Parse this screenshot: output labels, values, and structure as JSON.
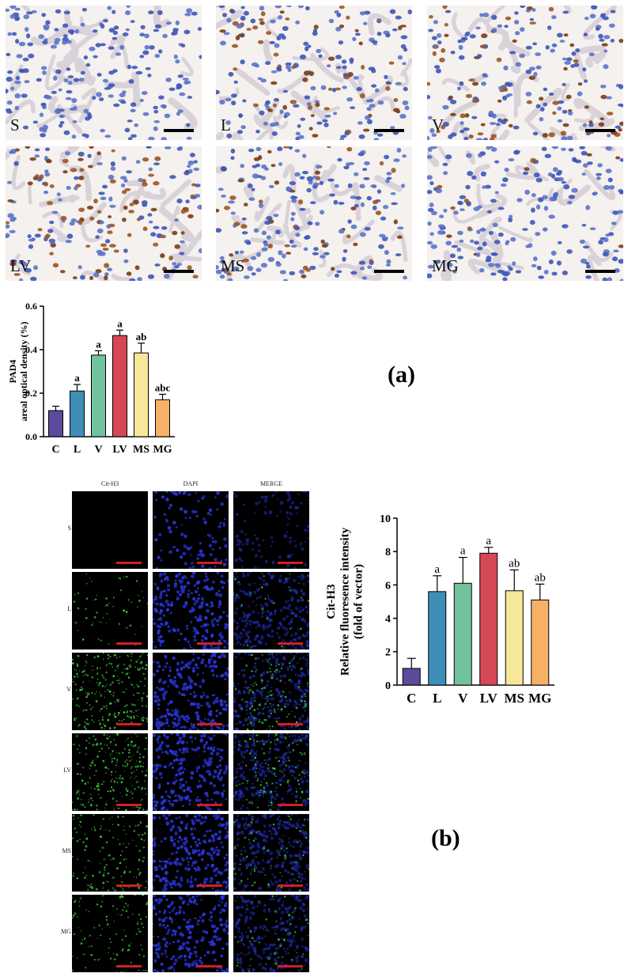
{
  "ihc_panels": [
    {
      "label": "S"
    },
    {
      "label": "L"
    },
    {
      "label": "V"
    },
    {
      "label": "LV"
    },
    {
      "label": "MS"
    },
    {
      "label": "MG"
    }
  ],
  "panel_a_tag": "(a)",
  "panel_b_tag": "(b)",
  "if_columns": [
    "Cit-H3",
    "DAPI",
    "MERGE"
  ],
  "if_rows": [
    "S",
    "L",
    "V",
    "LV",
    "MS",
    "MG"
  ],
  "colors": {
    "C": "#5b4b9a",
    "L": "#3e8eb8",
    "V": "#71c39e",
    "LV": "#d64856",
    "MS": "#f7e79a",
    "MG": "#f8b066"
  },
  "chart_data": [
    {
      "type": "bar",
      "title": "",
      "ylabel": "PAD4",
      "ylabel2": "areal optical density (%)",
      "ylim": [
        0,
        0.6
      ],
      "yticks": [
        "0.0",
        "0.2",
        "0.4",
        "0.6"
      ],
      "categories": [
        "C",
        "L",
        "V",
        "LV",
        "MS",
        "MG"
      ],
      "values": [
        0.12,
        0.21,
        0.375,
        0.465,
        0.385,
        0.17
      ],
      "errors": [
        0.02,
        0.03,
        0.02,
        0.025,
        0.045,
        0.025
      ],
      "annotations": [
        "",
        "a",
        "a",
        "a",
        "ab",
        "abc"
      ]
    },
    {
      "type": "bar",
      "title": "",
      "ylabel": "Cit-H3",
      "ylabel2": "Relative fluoresence intensity",
      "ylabel3": "(fold of vector)",
      "ylim": [
        0,
        10
      ],
      "yticks": [
        "0",
        "2",
        "4",
        "6",
        "8",
        "10"
      ],
      "categories": [
        "C",
        "L",
        "V",
        "LV",
        "MS",
        "MG"
      ],
      "values": [
        1.0,
        5.6,
        6.1,
        7.9,
        5.65,
        5.1
      ],
      "errors": [
        0.6,
        0.95,
        1.55,
        0.35,
        1.25,
        0.95
      ],
      "annotations": [
        "",
        "a",
        "a",
        "a",
        "ab",
        "ab"
      ]
    }
  ]
}
